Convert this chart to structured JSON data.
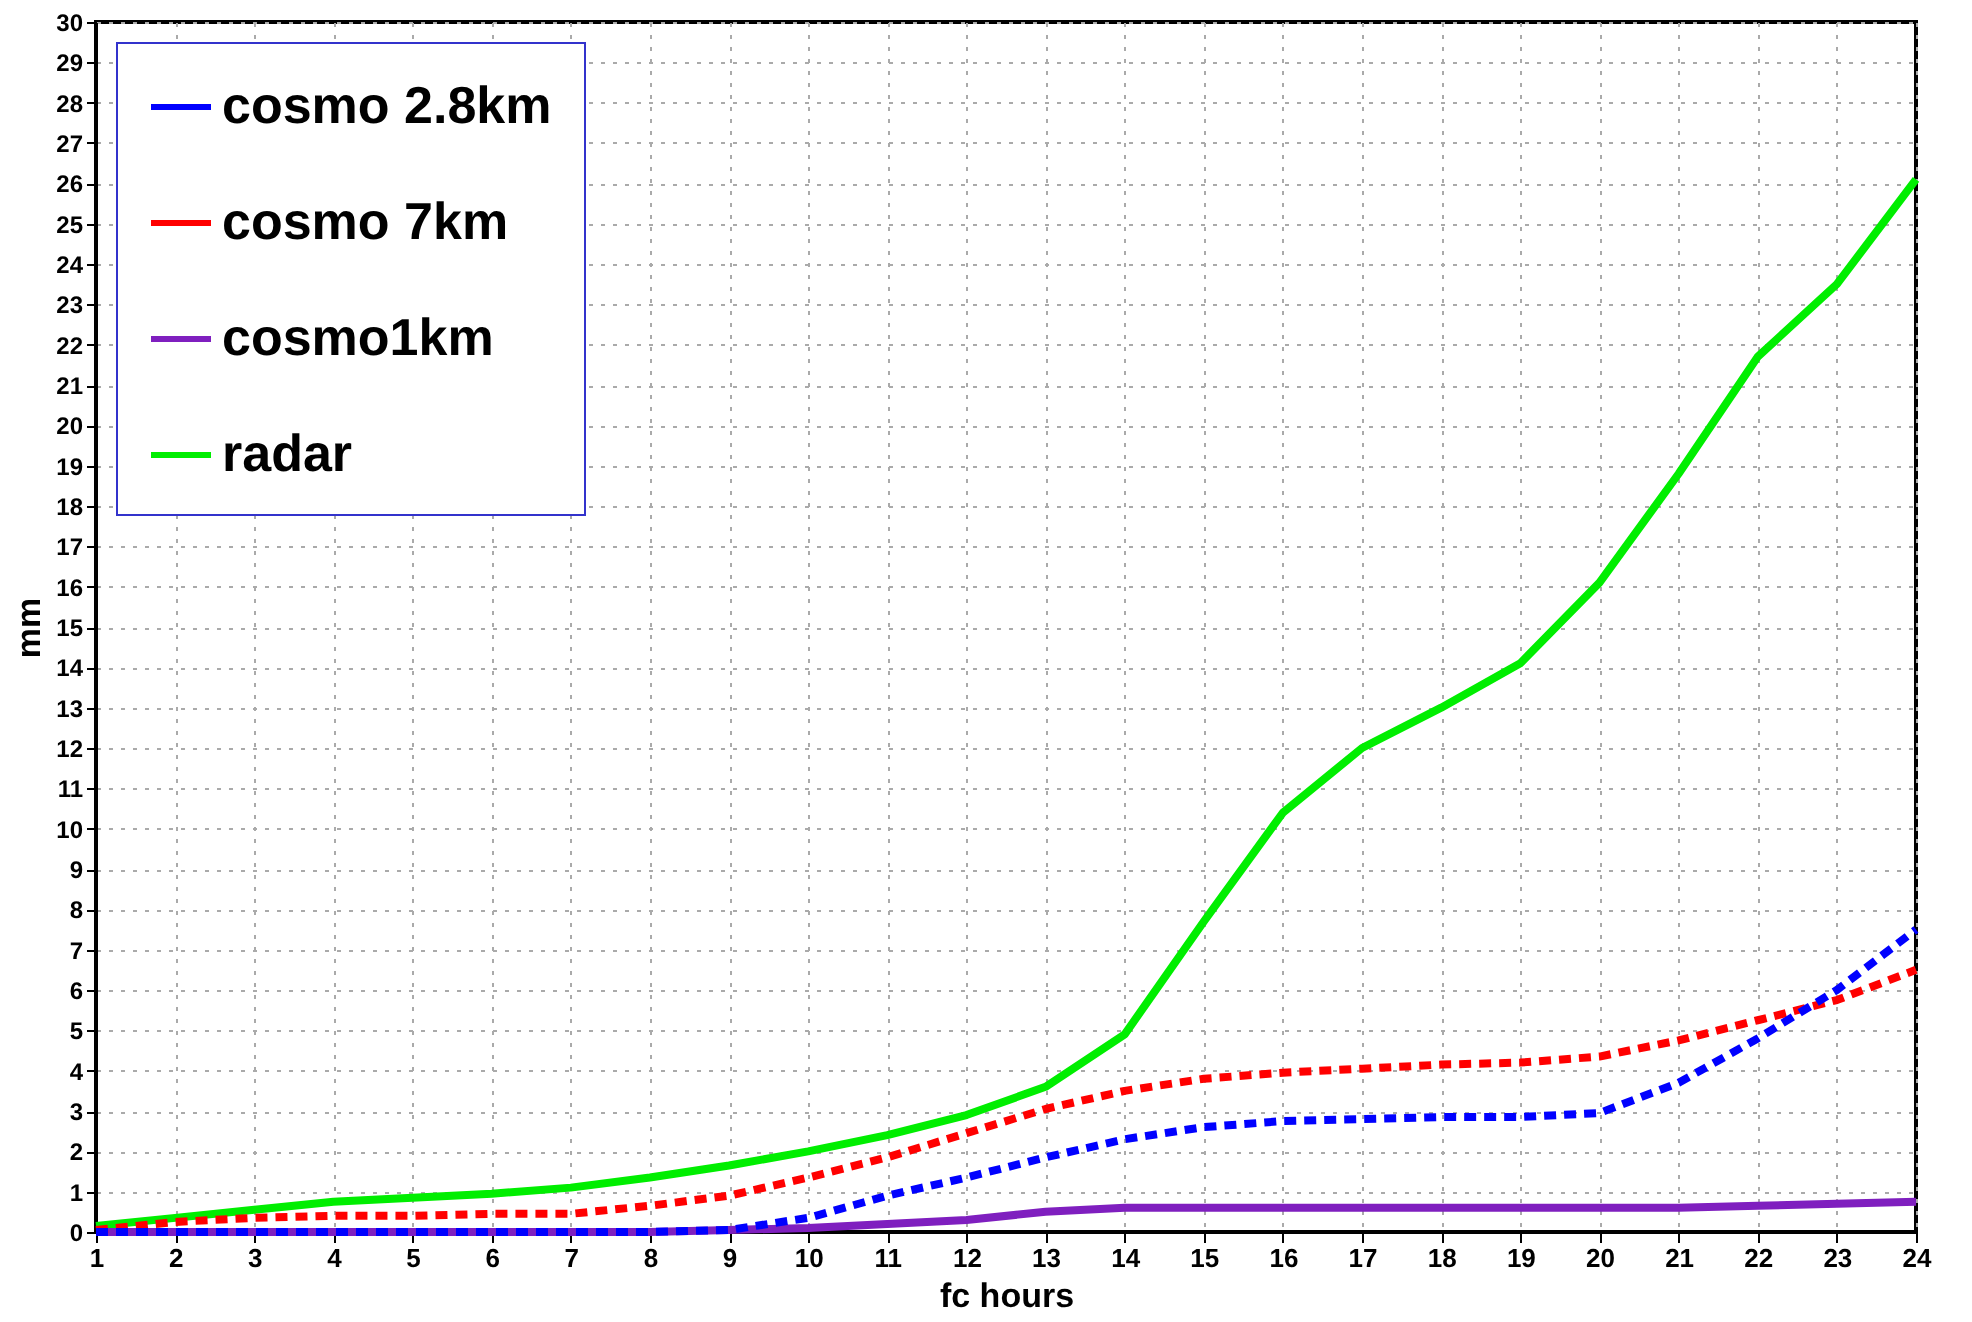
{
  "chart_data": {
    "type": "line",
    "xlabel": "fc hours",
    "ylabel": "mm",
    "x": [
      1,
      2,
      3,
      4,
      5,
      6,
      7,
      8,
      9,
      10,
      11,
      12,
      13,
      14,
      15,
      16,
      17,
      18,
      19,
      20,
      21,
      22,
      23,
      24
    ],
    "xlim": [
      1,
      24
    ],
    "xticks": [
      1,
      2,
      3,
      4,
      5,
      6,
      7,
      8,
      9,
      10,
      11,
      12,
      13,
      14,
      15,
      16,
      17,
      18,
      19,
      20,
      21,
      22,
      23,
      24
    ],
    "ylim": [
      0,
      30
    ],
    "yticks": [
      0,
      1,
      2,
      3,
      4,
      5,
      6,
      7,
      8,
      9,
      10,
      11,
      12,
      13,
      14,
      15,
      16,
      17,
      18,
      19,
      20,
      21,
      22,
      23,
      24,
      25,
      26,
      27,
      28,
      29,
      30
    ],
    "grid": true,
    "legend": "top left",
    "marker": "none",
    "series": [
      {
        "name": "cosmo 2.8km",
        "color": "#0000ff",
        "line_style": "dashed",
        "values": [
          0,
          0,
          0,
          0,
          0,
          0,
          0,
          0,
          0.05,
          0.35,
          0.9,
          1.35,
          1.85,
          2.3,
          2.6,
          2.75,
          2.8,
          2.85,
          2.85,
          2.95,
          3.7,
          4.8,
          6.0,
          7.5
        ]
      },
      {
        "name": "cosmo 7km",
        "color": "#ff0000",
        "line_style": "dashed",
        "values": [
          0.05,
          0.25,
          0.35,
          0.4,
          0.4,
          0.45,
          0.45,
          0.65,
          0.9,
          1.35,
          1.85,
          2.45,
          3.05,
          3.5,
          3.8,
          3.95,
          4.05,
          4.15,
          4.2,
          4.35,
          4.75,
          5.25,
          5.75,
          6.5
        ]
      },
      {
        "name": "cosmo1km",
        "color": "#7f1fbf",
        "line_style": "solid",
        "values": [
          0,
          0,
          0,
          0,
          0,
          0,
          0,
          0,
          0.05,
          0.1,
          0.2,
          0.3,
          0.5,
          0.6,
          0.6,
          0.6,
          0.6,
          0.6,
          0.6,
          0.6,
          0.6,
          0.65,
          0.7,
          0.75
        ]
      },
      {
        "name": "radar",
        "color": "#00ee00",
        "line_style": "solid",
        "values": [
          0.15,
          0.35,
          0.55,
          0.75,
          0.85,
          0.95,
          1.1,
          1.35,
          1.65,
          2.0,
          2.4,
          2.9,
          3.6,
          4.9,
          7.7,
          10.4,
          12.0,
          13.0,
          14.1,
          16.1,
          18.8,
          21.7,
          23.5,
          26.1
        ]
      }
    ]
  }
}
